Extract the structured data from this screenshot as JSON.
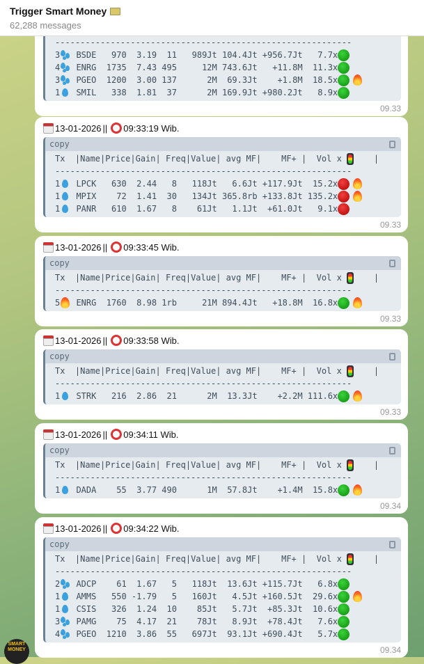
{
  "header": {
    "title": "Trigger Smart Money",
    "title_icon": "money-icon",
    "subtitle": "62,288 messages"
  },
  "columns_header": "Tx  |Name|Price|Gain| Freq|Value| avg MF|    MF+ |  Vol x ",
  "copy_label": "copy",
  "avatar_text": "SMART MONEY",
  "colors": {
    "green": "#0a8a0a",
    "red": "#c00000",
    "code_bg": "#e6ebef"
  },
  "messages": [
    {
      "partial": true,
      "date": "",
      "time": "",
      "sent": "09.33",
      "rows": [
        {
          "tx": "3",
          "drop": "multi",
          "name": "BSDE",
          "price": "970",
          "gain": "3.19",
          "freq": "11",
          "value": "989Jt",
          "avg": "104.4Jt",
          "mf": "+956.7Jt",
          "vol": "7.7x",
          "signal": "green",
          "fire": false
        },
        {
          "tx": "4",
          "drop": "multi",
          "name": "ENRG",
          "price": "1735",
          "gain": "7.43",
          "freq": "495",
          "value": "12M",
          "avg": "743.6Jt",
          "mf": "+11.8M",
          "vol": "11.3x",
          "signal": "green",
          "fire": false
        },
        {
          "tx": "3",
          "drop": "multi",
          "name": "PGEO",
          "price": "1200",
          "gain": "3.00",
          "freq": "137",
          "value": "2M",
          "avg": "69.3Jt",
          "mf": "+1.8M",
          "vol": "18.5x",
          "signal": "green",
          "fire": true
        },
        {
          "tx": "1",
          "drop": "single",
          "name": "SMIL",
          "price": "338",
          "gain": "1.81",
          "freq": "37",
          "value": "2M",
          "avg": "169.9Jt",
          "mf": "+980.2Jt",
          "vol": "8.9x",
          "signal": "green",
          "fire": false
        }
      ]
    },
    {
      "date": "13-01-2026",
      "sep": " || ",
      "time": "09:33:19 Wib.",
      "sent": "09.33",
      "rows": [
        {
          "tx": "1",
          "drop": "single",
          "name": "LPCK",
          "price": "630",
          "gain": "2.44",
          "freq": "8",
          "value": "118Jt",
          "avg": "6.6Jt",
          "mf": "+117.9Jt",
          "vol": "15.2x",
          "signal": "red",
          "fire": true
        },
        {
          "tx": "1",
          "drop": "single",
          "name": "MPIX",
          "price": "72",
          "gain": "1.41",
          "freq": "30",
          "value": "134Jt",
          "avg": "365.8rb",
          "mf": "+133.8Jt",
          "vol": "135.2x",
          "signal": "red",
          "fire": true
        },
        {
          "tx": "1",
          "drop": "single",
          "name": "PANR",
          "price": "610",
          "gain": "1.67",
          "freq": "8",
          "value": "61Jt",
          "avg": "1.1Jt",
          "mf": "+61.0Jt",
          "vol": "9.1x",
          "signal": "red",
          "fire": false
        }
      ]
    },
    {
      "date": "13-01-2026",
      "sep": " || ",
      "time": "09:33:45 Wib.",
      "sent": "09.33",
      "rows": [
        {
          "tx": "5",
          "drop": "fire",
          "name": "ENRG",
          "price": "1760",
          "gain": "8.98",
          "freq": "1rb",
          "value": "21M",
          "avg": "894.4Jt",
          "mf": "+18.8M",
          "vol": "16.8x",
          "signal": "green",
          "fire": true
        }
      ]
    },
    {
      "date": "13-01-2026",
      "sep": " || ",
      "time": "09:33:58 Wib.",
      "sent": "09.33",
      "rows": [
        {
          "tx": "1",
          "drop": "single",
          "name": "STRK",
          "price": "216",
          "gain": "2.86",
          "freq": "21",
          "value": "2M",
          "avg": "13.3Jt",
          "mf": "+2.2M",
          "vol": "111.6x",
          "signal": "green",
          "fire": true
        }
      ]
    },
    {
      "date": "13-01-2026",
      "sep": " || ",
      "time": "09:34:11 Wib.",
      "sent": "09.34",
      "rows": [
        {
          "tx": "1",
          "drop": "single",
          "name": "DADA",
          "price": "55",
          "gain": "3.77",
          "freq": "490",
          "value": "1M",
          "avg": "57.8Jt",
          "mf": "+1.4M",
          "vol": "15.8x",
          "signal": "green",
          "fire": true
        }
      ]
    },
    {
      "date": "13-01-2026",
      "sep": " || ",
      "time": "09:34:22 Wib.",
      "sent": "09.34",
      "rows": [
        {
          "tx": "2",
          "drop": "multi",
          "name": "ADCP",
          "price": "61",
          "gain": "1.67",
          "freq": "5",
          "value": "118Jt",
          "avg": "13.6Jt",
          "mf": "+115.7Jt",
          "vol": "6.8x",
          "signal": "green",
          "fire": false
        },
        {
          "tx": "1",
          "drop": "single",
          "name": "AMMS",
          "price": "550",
          "gain": "-1.79",
          "freq": "5",
          "value": "160Jt",
          "avg": "4.5Jt",
          "mf": "+160.5Jt",
          "vol": "29.6x",
          "signal": "green",
          "fire": true
        },
        {
          "tx": "1",
          "drop": "single",
          "name": "CSIS",
          "price": "326",
          "gain": "1.24",
          "freq": "10",
          "value": "85Jt",
          "avg": "5.7Jt",
          "mf": "+85.3Jt",
          "vol": "10.6x",
          "signal": "green",
          "fire": false
        },
        {
          "tx": "3",
          "drop": "multi",
          "name": "PAMG",
          "price": "75",
          "gain": "4.17",
          "freq": "21",
          "value": "78Jt",
          "avg": "8.9Jt",
          "mf": "+78.4Jt",
          "vol": "7.6x",
          "signal": "green",
          "fire": false
        },
        {
          "tx": "4",
          "drop": "multi",
          "name": "PGEO",
          "price": "1210",
          "gain": "3.86",
          "freq": "55",
          "value": "697Jt",
          "avg": "93.1Jt",
          "mf": "+690.4Jt",
          "vol": "5.7x",
          "signal": "green",
          "fire": false
        }
      ]
    }
  ]
}
